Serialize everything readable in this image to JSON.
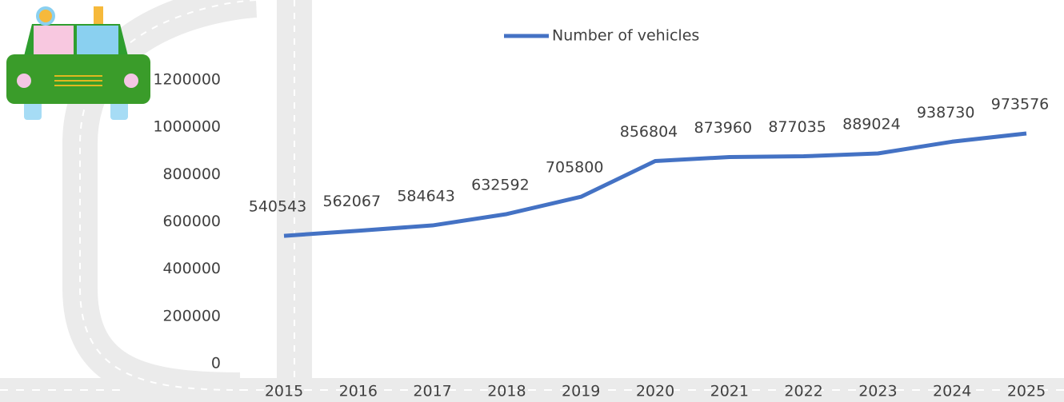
{
  "chart_data": {
    "type": "line",
    "categories": [
      "2015",
      "2016",
      "2017",
      "2018",
      "2019",
      "2020",
      "2021",
      "2022",
      "2023",
      "2024",
      "2025"
    ],
    "series": [
      {
        "name": "Number of vehicles",
        "color": "#4472c4",
        "values": [
          540543,
          562067,
          584643,
          632592,
          705800,
          856804,
          873960,
          877035,
          889024,
          938730,
          973576
        ]
      }
    ],
    "ylim": [
      0,
      1200000
    ],
    "yticks": [
      0,
      200000,
      400000,
      600000,
      800000,
      1000000,
      1200000
    ],
    "legend": "top"
  }
}
